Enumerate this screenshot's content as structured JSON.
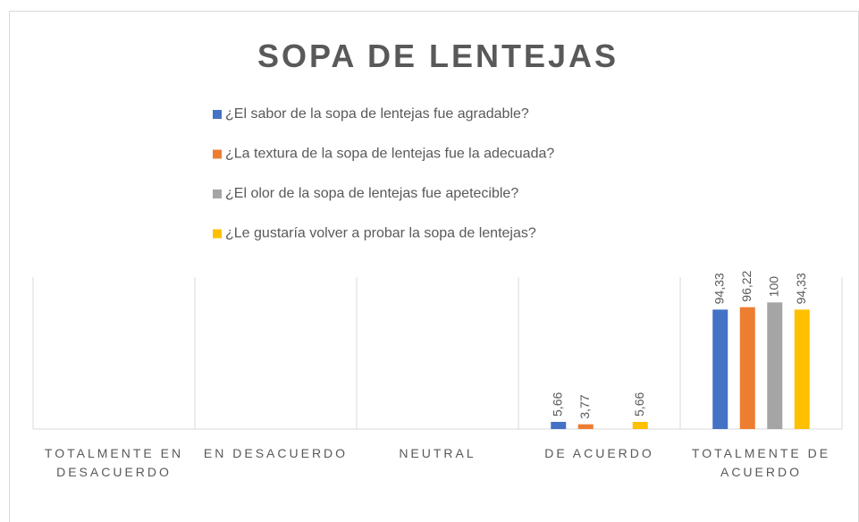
{
  "chart_data": {
    "type": "bar",
    "title": "SOPA DE LENTEJAS",
    "categories": [
      "TOTALMENTE EN DESACUERDO",
      "EN DESACUERDO",
      "NEUTRAL",
      "DE ACUERDO",
      "TOTALMENTE DE ACUERDO"
    ],
    "series": [
      {
        "name": "¿El sabor de la sopa de lentejas fue agradable?",
        "color": "#4472c4",
        "values": [
          null,
          null,
          null,
          5.66,
          94.33
        ],
        "value_labels": [
          null,
          null,
          null,
          "5,66",
          "94,33"
        ]
      },
      {
        "name": "¿La textura de la sopa de lentejas fue la adecuada?",
        "color": "#ed7d31",
        "values": [
          null,
          null,
          null,
          3.77,
          96.22
        ],
        "value_labels": [
          null,
          null,
          null,
          "3,77",
          "96,22"
        ]
      },
      {
        "name": "¿El olor de la sopa de lentejas fue apetecible?",
        "color": "#a5a5a5",
        "values": [
          null,
          null,
          null,
          null,
          100
        ],
        "value_labels": [
          null,
          null,
          null,
          null,
          "100"
        ]
      },
      {
        "name": "¿Le gustaría volver a probar la sopa de lentejas?",
        "color": "#ffc000",
        "values": [
          null,
          null,
          null,
          5.66,
          94.33
        ],
        "value_labels": [
          null,
          null,
          null,
          "5,66",
          "94,33"
        ]
      }
    ],
    "ylim": [
      0,
      120
    ]
  }
}
